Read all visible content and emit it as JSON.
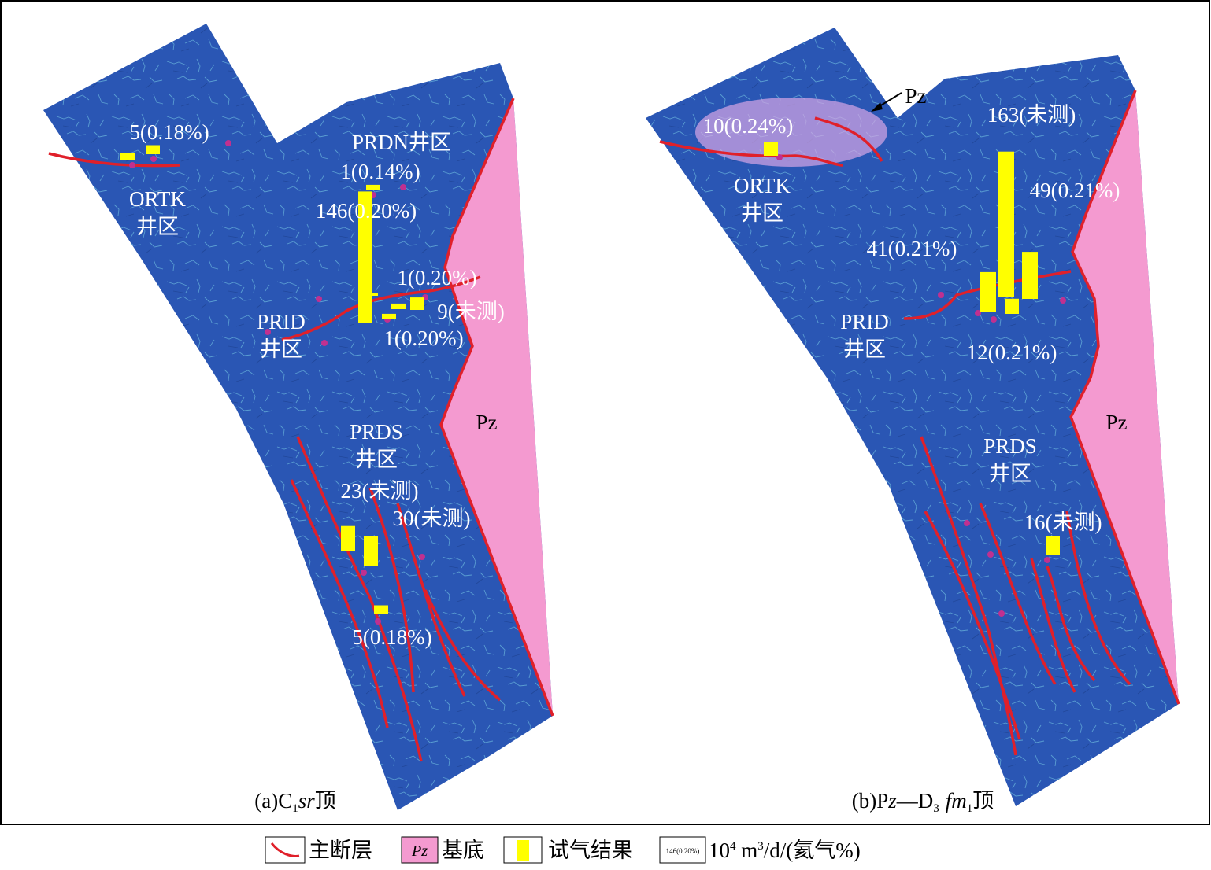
{
  "panels": [
    {
      "caption": [
        "(a)C",
        "1",
        "sr",
        "顶"
      ],
      "areas": [
        "ORTK",
        "井区",
        "PRDN井区",
        "PRID",
        "井区",
        "PRDS",
        "井区"
      ],
      "basement": "Pz",
      "values": [
        5,
        1,
        146,
        1,
        9,
        1,
        23,
        30,
        5
      ],
      "value_labels": [
        "5(0.18%)",
        "1(0.14%)",
        "146(0.20%)",
        "1(0.20%)",
        "9(未测)",
        "1(0.20%)",
        "23(未测)",
        "30(未测)",
        "5(0.18%)"
      ]
    },
    {
      "caption": [
        "(b)P",
        "z",
        "—D",
        "3",
        "fm",
        "1",
        "顶"
      ],
      "areas": [
        "ORTK",
        "井区",
        "PRID",
        "井区",
        "PRDS",
        "井区"
      ],
      "basement": "Pz",
      "callout": "Pz",
      "values": [
        10,
        163,
        49,
        41,
        12,
        16
      ],
      "value_labels": [
        "10(0.24%)",
        "163(未测)",
        "49(0.21%)",
        "41(0.21%)",
        "12(0.21%)",
        "16(未测)"
      ]
    }
  ],
  "legend": {
    "fault": "主断层",
    "basement_icon": "Pz",
    "basement": "基底",
    "test": "试气结果",
    "sample": "146(0.20%)",
    "unit": [
      "10",
      "4",
      " m",
      "3",
      "/d/(氦气%)"
    ]
  }
}
